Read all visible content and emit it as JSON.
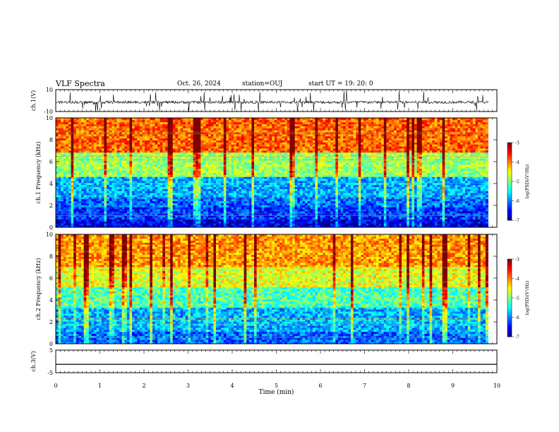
{
  "header": {
    "title": "VLF Spectra",
    "date": "Oct. 26, 2024",
    "station": "station=OUJ",
    "start": "start UT =  19: 20: 0"
  },
  "colors": {
    "colormap": [
      "#00007f",
      "#0000ff",
      "#007fff",
      "#00ffff",
      "#7fff7f",
      "#ffff00",
      "#ff7f00",
      "#ff0000",
      "#7f0000"
    ],
    "trace": "#000000"
  },
  "chart_data": [
    {
      "type": "line",
      "name": "waveform-ch1",
      "ylabel": "ch.1(V)",
      "ylim": [
        -10,
        10
      ],
      "yticks": [
        "10",
        "-10"
      ],
      "baseline_v": -1.5,
      "xlim": [
        0,
        10
      ]
    },
    {
      "type": "heatmap",
      "name": "spectrogram-ch1",
      "ylabel": "ch.1 Frequency (kHz)",
      "ylim": [
        0,
        10
      ],
      "yticks": [
        "0",
        "2",
        "4",
        "6",
        "8",
        "10"
      ],
      "xlim": [
        0,
        10
      ],
      "data_end_min": 9.8,
      "bands_khz": [
        [
          0,
          0.7,
          -6.6
        ],
        [
          0.7,
          1.8,
          -6.3
        ],
        [
          1.8,
          2.8,
          -6.1
        ],
        [
          2.8,
          4.7,
          -5.8
        ],
        [
          4.7,
          6.8,
          -4.9
        ],
        [
          6.8,
          10,
          -3.9
        ]
      ],
      "colorbar": {
        "label": "log(PSD)(V²/Hz)",
        "ticks": [
          "-3",
          "-4",
          "-5",
          "-6",
          "-7"
        ],
        "range": [
          -7,
          -3
        ]
      }
    },
    {
      "type": "heatmap",
      "name": "spectrogram-ch2",
      "ylabel": "ch.2 Frequency (kHz)",
      "ylim": [
        0,
        10
      ],
      "yticks": [
        "0",
        "2",
        "4",
        "6",
        "8",
        "10"
      ],
      "xlim": [
        0,
        10
      ],
      "data_end_min": 9.8,
      "bands_khz": [
        [
          0,
          1.2,
          -6.1
        ],
        [
          1.2,
          3.4,
          -5.8
        ],
        [
          3.4,
          5.2,
          -5.2
        ],
        [
          5.2,
          7.0,
          -4.6
        ],
        [
          7.0,
          10,
          -4.1
        ]
      ],
      "colorbar": {
        "label": "log(PSD)(V²/Hz)",
        "ticks": [
          "-3",
          "-4",
          "-5",
          "-6",
          "-7"
        ],
        "range": [
          -7,
          -3
        ]
      }
    },
    {
      "type": "line",
      "name": "waveform-ch3",
      "ylabel": "ch.3(V)",
      "ylim": [
        -5,
        5
      ],
      "yticks": [
        "5",
        "-5"
      ],
      "baseline_v": -1.3,
      "xlim": [
        0,
        10
      ],
      "xlabel": "Time  (min)",
      "xticks": [
        "0",
        "1",
        "2",
        "3",
        "4",
        "5",
        "6",
        "7",
        "8",
        "9",
        "10"
      ]
    }
  ]
}
